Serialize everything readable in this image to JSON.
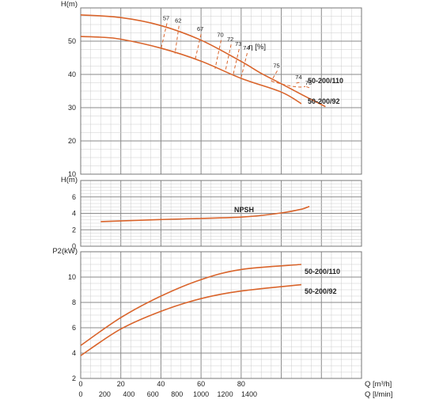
{
  "colors": {
    "curve": "#d9642b",
    "grid_minor": "#cccccc",
    "grid_major": "#8a8a8a",
    "frame": "#777777",
    "text": "#222222"
  },
  "chart_data": [
    {
      "type": "line",
      "title": "",
      "ylabel": "H(m)",
      "xlim": [
        0,
        140
      ],
      "ylim": [
        10,
        60
      ],
      "y_ticks": [
        10,
        20,
        30,
        40,
        50
      ],
      "grid": true,
      "series": [
        {
          "name": "50-200/110",
          "points": [
            [
              0,
              57.9
            ],
            [
              20,
              57.1
            ],
            [
              40,
              54.7
            ],
            [
              60,
              50.3
            ],
            [
              80,
              43.9
            ],
            [
              90,
              40.3
            ],
            [
              100,
              37.2
            ],
            [
              110,
              34.0
            ],
            [
              122,
              30.3
            ]
          ]
        },
        {
          "name": "50-200/92",
          "points": [
            [
              0,
              51.4
            ],
            [
              10,
              51.2
            ],
            [
              20,
              50.6
            ],
            [
              40,
              47.9
            ],
            [
              60,
              44.0
            ],
            [
              80,
              38.8
            ],
            [
              100,
              34.7
            ],
            [
              110,
              31.2
            ]
          ]
        }
      ],
      "efficiency_label": "η [%]",
      "efficiency_contours": [
        {
          "label": "57",
          "points": [
            [
              43,
              55.4
            ],
            [
              40,
              47.6
            ]
          ]
        },
        {
          "label": "62",
          "points": [
            [
              49,
              54.6
            ],
            [
              47,
              46.2
            ]
          ]
        },
        {
          "label": "67",
          "points": [
            [
              60,
              52.1
            ],
            [
              57,
              44.3
            ]
          ]
        },
        {
          "label": "70",
          "points": [
            [
              70,
              50.3
            ],
            [
              67,
              41.7
            ]
          ]
        },
        {
          "label": "72",
          "points": [
            [
              75,
              49.0
            ],
            [
              72,
              40.7
            ]
          ]
        },
        {
          "label": "73",
          "points": [
            [
              79,
              47.6
            ],
            [
              76,
              39.9
            ]
          ]
        },
        {
          "label": "74",
          "points": [
            [
              83,
              46.4
            ],
            [
              80,
              39.1
            ]
          ]
        },
        {
          "label": "75",
          "points": [
            [
              98,
              41.1
            ],
            [
              95,
              38.0
            ]
          ]
        },
        {
          "label": "74",
          "points": [
            [
              109,
              37.6
            ],
            [
              107,
              37.3
            ]
          ]
        },
        {
          "label": "73",
          "points": [
            [
              114,
              36.0
            ],
            [
              112,
              36.4
            ]
          ]
        }
      ]
    },
    {
      "type": "line",
      "ylabel": "H(m)",
      "xlim": [
        0,
        140
      ],
      "ylim": [
        0,
        8
      ],
      "y_ticks": [
        0,
        2,
        4,
        6
      ],
      "grid": true,
      "series": [
        {
          "name": "NPSH",
          "points": [
            [
              10,
              3.0
            ],
            [
              40,
              3.25
            ],
            [
              80,
              3.55
            ],
            [
              100,
              4.05
            ],
            [
              110,
              4.5
            ],
            [
              114,
              4.85
            ]
          ]
        }
      ]
    },
    {
      "type": "line",
      "ylabel": "P2(kW)",
      "xlabel": "Q [m³/h]",
      "xlabel2": "Q [l/min]",
      "xlim": [
        0,
        140
      ],
      "ylim": [
        2,
        12
      ],
      "y_ticks": [
        2,
        4,
        6,
        8,
        10
      ],
      "x_ticks": [
        0,
        20,
        40,
        60,
        80
      ],
      "x2_ticks": [
        0,
        200,
        400,
        600,
        800,
        1000,
        1200,
        1400
      ],
      "grid": true,
      "series": [
        {
          "name": "50-200/110",
          "points": [
            [
              0,
              4.6
            ],
            [
              20,
              6.8
            ],
            [
              40,
              8.5
            ],
            [
              60,
              9.8
            ],
            [
              80,
              10.6
            ],
            [
              110,
              11.0
            ]
          ]
        },
        {
          "name": "50-200/92",
          "points": [
            [
              0,
              3.8
            ],
            [
              20,
              5.9
            ],
            [
              40,
              7.3
            ],
            [
              60,
              8.3
            ],
            [
              80,
              8.9
            ],
            [
              110,
              9.4
            ]
          ]
        }
      ]
    }
  ]
}
